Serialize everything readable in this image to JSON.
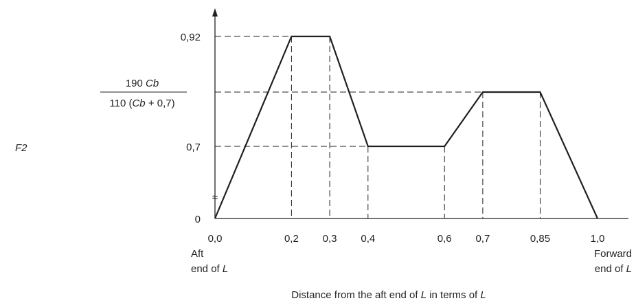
{
  "chart_data": {
    "type": "line",
    "title": "",
    "ylabel": "F2",
    "xlabel": "Distance from the aft end of L in terms of L",
    "x_ticks": [
      "0,0",
      "0,2",
      "0,3",
      "0,4",
      "0,6",
      "0,7",
      "0,85",
      "1,0"
    ],
    "y_ticks": {
      "zero": "0",
      "low": "0,7",
      "high": "0,92",
      "frac_numerator": "190 Cb",
      "frac_denominator": "110 (Cb + 0,7)"
    },
    "break_symbol": "≈",
    "x_end_labels": {
      "aft": [
        "Aft",
        "end of L"
      ],
      "forward": [
        "Forward",
        "end of L"
      ]
    },
    "series": [
      {
        "x": [
          0.0,
          0.2,
          0.3,
          0.4,
          0.6,
          0.7,
          0.85,
          1.0
        ],
        "y": [
          0,
          "0,92",
          "0,92",
          "0,7",
          "0,7",
          "190 Cb / 110 (Cb + 0,7)",
          "190 Cb / 110 (Cb + 0,7)",
          0
        ]
      }
    ],
    "xlim": [
      0,
      1.0
    ],
    "grid": false
  }
}
